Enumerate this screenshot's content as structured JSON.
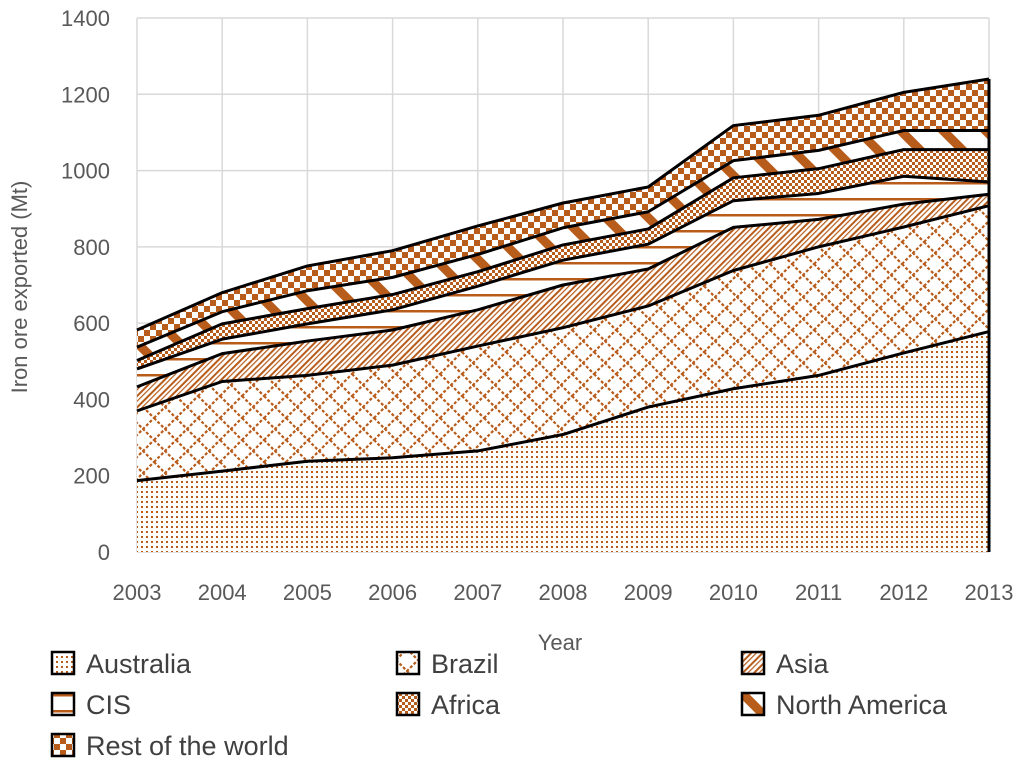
{
  "chart_data": {
    "type": "area",
    "stacked": true,
    "title": "",
    "xlabel": "Year",
    "ylabel": "Iron ore exported (Mt)",
    "ylim": [
      0,
      1400
    ],
    "yticks": [
      0,
      200,
      400,
      600,
      800,
      1000,
      1200,
      1400
    ],
    "grid": true,
    "legend_position": "bottom",
    "x": [
      "2003",
      "2004",
      "2005",
      "2006",
      "2007",
      "2008",
      "2009",
      "2010",
      "2011",
      "2012",
      "2013"
    ],
    "series": [
      {
        "name": "Australia",
        "pattern": "dots",
        "values": [
          187,
          212,
          238,
          247,
          265,
          308,
          380,
          428,
          463,
          522,
          578
        ]
      },
      {
        "name": "Brazil",
        "pattern": "diamond-grid",
        "values": [
          183,
          235,
          225,
          243,
          275,
          280,
          265,
          310,
          337,
          330,
          330
        ]
      },
      {
        "name": "Asia",
        "pattern": "diagonal-stripes",
        "values": [
          63,
          73,
          90,
          92,
          95,
          112,
          97,
          113,
          72,
          60,
          30
        ]
      },
      {
        "name": "CIS",
        "pattern": "horizontal-lines",
        "values": [
          47,
          38,
          45,
          53,
          62,
          65,
          65,
          70,
          68,
          73,
          32
        ]
      },
      {
        "name": "Africa",
        "pattern": "checker-fine",
        "values": [
          22,
          40,
          40,
          40,
          38,
          40,
          40,
          60,
          65,
          70,
          85
        ]
      },
      {
        "name": "North America",
        "pattern": "diagonal-bands",
        "values": [
          35,
          32,
          47,
          45,
          45,
          45,
          45,
          45,
          48,
          50,
          50
        ]
      },
      {
        "name": "Rest of the world",
        "pattern": "checker-coarse",
        "values": [
          45,
          50,
          65,
          70,
          75,
          65,
          65,
          92,
          92,
          100,
          135
        ]
      }
    ],
    "colors": {
      "fill": "#B85C1C",
      "outline": "#000000",
      "grid": "#D9D9D9",
      "text": "#595959",
      "legend_text": "#404040"
    }
  }
}
